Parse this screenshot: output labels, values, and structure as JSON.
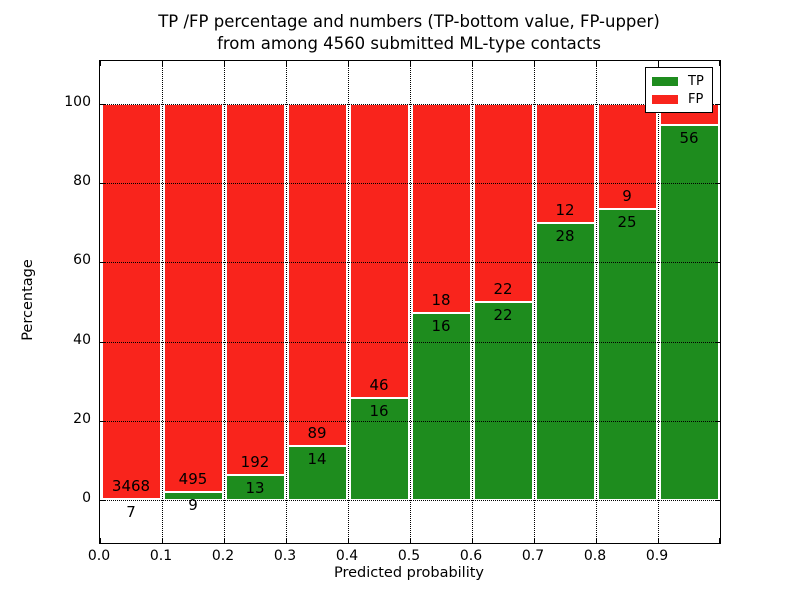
{
  "figure": {
    "title_line1": "TP /FP percentage and numbers (TP-bottom value, FP-upper)",
    "title_line2": "from among 4560 submitted ML-type contacts",
    "xlabel": "Predicted probability",
    "ylabel": "Percentage",
    "total_contacts": "4560"
  },
  "legend": {
    "position": "upper right",
    "items": [
      {
        "label": "TP",
        "color": "#1e8c1e"
      },
      {
        "label": "FP",
        "color": "#f9241c"
      }
    ]
  },
  "chart_data": {
    "type": "bar",
    "stacked": true,
    "title": "TP /FP percentage and numbers (TP-bottom value, FP-upper) from among 4560 submitted ML-type contacts",
    "xlabel": "Predicted probability",
    "ylabel": "Percentage",
    "xlim": [
      0.0,
      1.0
    ],
    "ylim": [
      -11,
      111
    ],
    "x_tick_labels": [
      "0.0",
      "0.1",
      "0.2",
      "0.3",
      "0.4",
      "0.5",
      "0.6",
      "0.7",
      "0.8",
      "0.9"
    ],
    "y_ticks": [
      0,
      20,
      40,
      60,
      80,
      100
    ],
    "grid": true,
    "grid_style": "dotted",
    "bar_edge_color": "#ffffff",
    "legend_position": "upper right",
    "series": [
      {
        "name": "TP",
        "color": "#1e8c1e",
        "stack_order": "bottom"
      },
      {
        "name": "FP",
        "color": "#f9241c",
        "stack_order": "top"
      }
    ],
    "bins": [
      {
        "x0": 0.0,
        "x1": 0.1,
        "tp": 7,
        "fp": 3468,
        "tp_pct": 0.2,
        "fp_pct": 99.8,
        "tp_label": "7",
        "fp_label": "3468"
      },
      {
        "x0": 0.1,
        "x1": 0.2,
        "tp": 9,
        "fp": 495,
        "tp_pct": 1.8,
        "fp_pct": 98.2,
        "tp_label": "9",
        "fp_label": "495"
      },
      {
        "x0": 0.2,
        "x1": 0.3,
        "tp": 13,
        "fp": 192,
        "tp_pct": 6.3,
        "fp_pct": 93.7,
        "tp_label": "13",
        "fp_label": "192"
      },
      {
        "x0": 0.3,
        "x1": 0.4,
        "tp": 14,
        "fp": 89,
        "tp_pct": 13.6,
        "fp_pct": 86.4,
        "tp_label": "14",
        "fp_label": "89"
      },
      {
        "x0": 0.4,
        "x1": 0.5,
        "tp": 16,
        "fp": 46,
        "tp_pct": 25.8,
        "fp_pct": 74.2,
        "tp_label": "16",
        "fp_label": "46"
      },
      {
        "x0": 0.5,
        "x1": 0.6,
        "tp": 16,
        "fp": 18,
        "tp_pct": 47.1,
        "fp_pct": 52.9,
        "tp_label": "16",
        "fp_label": "18"
      },
      {
        "x0": 0.6,
        "x1": 0.7,
        "tp": 22,
        "fp": 22,
        "tp_pct": 50.0,
        "fp_pct": 50.0,
        "tp_label": "22",
        "fp_label": "22"
      },
      {
        "x0": 0.7,
        "x1": 0.8,
        "tp": 28,
        "fp": 12,
        "tp_pct": 70.0,
        "fp_pct": 30.0,
        "tp_label": "28",
        "fp_label": "12"
      },
      {
        "x0": 0.8,
        "x1": 0.9,
        "tp": 25,
        "fp": 9,
        "tp_pct": 73.5,
        "fp_pct": 26.5,
        "tp_label": "25",
        "fp_label": "9"
      },
      {
        "x0": 0.9,
        "x1": 1.0,
        "tp": 56,
        "fp": 3,
        "tp_pct": 94.9,
        "fp_pct": 5.1,
        "tp_label": "56",
        "fp_label": ""
      }
    ],
    "notes": "fp_label of last bin is hidden behind the legend box in the rendered image"
  }
}
